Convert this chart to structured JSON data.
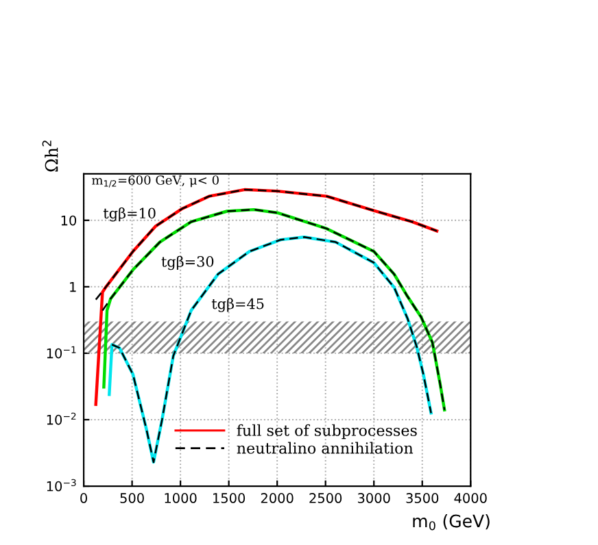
{
  "chart_data": {
    "type": "line",
    "xlabel": "m$_{0}$ (GeV)",
    "ylabel": "Ωh$^{2}$",
    "annotations": [
      "m$_{1/2}$=600 GeV, μ< 0",
      "tgβ=10",
      "tgβ=30",
      "tgβ=45"
    ],
    "log": "y",
    "xlim": [
      0,
      4000
    ],
    "ylim": [
      0.001,
      50
    ],
    "xticks": [
      0,
      500,
      1000,
      1500,
      2000,
      2500,
      3000,
      3500,
      4000
    ],
    "yticks": [
      {
        "value": 0.001,
        "label": "10$^{−3}$"
      },
      {
        "value": 0.01,
        "label": "10$^{−2}$"
      },
      {
        "value": 0.1,
        "label": "10$^{−1}$"
      },
      1,
      10
    ],
    "grid": true,
    "legend": "bottom",
    "bands": [
      {
        "axis": "y",
        "from": 0.1,
        "to": 0.3,
        "color": "#888888"
      }
    ],
    "series": [
      {
        "name": "full set of subprocesses",
        "color": "#ff0000",
        "line_style": "solid",
        "x": [
          125,
          194,
          231,
          509,
          741,
          1019,
          1296,
          1667,
          2000,
          2512,
          3000,
          3395,
          3651
        ],
        "values": [
          0.017,
          0.83,
          1.0,
          3.4,
          8.1,
          15,
          23,
          29,
          27.5,
          23,
          14,
          9.5,
          6.9
        ]
      },
      {
        "color": "#00dd00",
        "line_style": "solid",
        "x": [
          208,
          241,
          278,
          509,
          787,
          1111,
          1481,
          1759,
          2000,
          2512,
          3000,
          3209,
          3349,
          3488,
          3605,
          3684,
          3730
        ],
        "values": [
          0.031,
          0.44,
          0.66,
          1.8,
          4.7,
          9.5,
          13.7,
          14.5,
          13,
          7.5,
          3.4,
          1.55,
          0.71,
          0.35,
          0.145,
          0.035,
          0.014
        ]
      },
      {
        "color": "#00e5ee",
        "line_style": "solid",
        "x": [
          264,
          292,
          370,
          509,
          648,
          722,
          810,
          926,
          1111,
          1389,
          1713,
          2037,
          2279,
          2605,
          3000,
          3209,
          3349,
          3442,
          3512,
          3591
        ],
        "values": [
          0.024,
          0.135,
          0.12,
          0.048,
          0.0072,
          0.0023,
          0.01,
          0.091,
          0.44,
          1.55,
          3.4,
          5.1,
          5.6,
          4.7,
          2.3,
          0.98,
          0.33,
          0.126,
          0.048,
          0.0126
        ]
      },
      {
        "name": "neutralino annihilation",
        "color": "#000000",
        "line_style": "dashed",
        "x": [
          125,
          231,
          509,
          741,
          1019,
          1296,
          1667,
          2000,
          2512,
          3000,
          3395,
          3651
        ],
        "values": [
          0.64,
          1.0,
          3.4,
          8.1,
          15,
          23,
          29,
          27.5,
          23,
          14,
          9.5,
          6.9
        ]
      },
      {
        "color": "#000000",
        "line_style": "dashed",
        "x": [
          194,
          278,
          509,
          787,
          1111,
          1481,
          1759,
          2000,
          2512,
          3000,
          3209,
          3349,
          3488,
          3605,
          3684,
          3730
        ],
        "values": [
          0.44,
          0.66,
          1.8,
          4.7,
          9.5,
          13.7,
          14.5,
          13,
          7.5,
          3.4,
          1.55,
          0.71,
          0.35,
          0.145,
          0.035,
          0.014
        ]
      },
      {
        "color": "#000000",
        "line_style": "dashed",
        "x": [
          292,
          370,
          509,
          648,
          722,
          810,
          926,
          1111,
          1389,
          1713,
          2037,
          2279,
          2605,
          3000,
          3209,
          3349,
          3442,
          3512,
          3591
        ],
        "values": [
          0.135,
          0.12,
          0.048,
          0.0072,
          0.0023,
          0.01,
          0.091,
          0.44,
          1.55,
          3.4,
          5.1,
          5.6,
          4.7,
          2.3,
          0.98,
          0.33,
          0.126,
          0.048,
          0.0126
        ]
      }
    ]
  }
}
